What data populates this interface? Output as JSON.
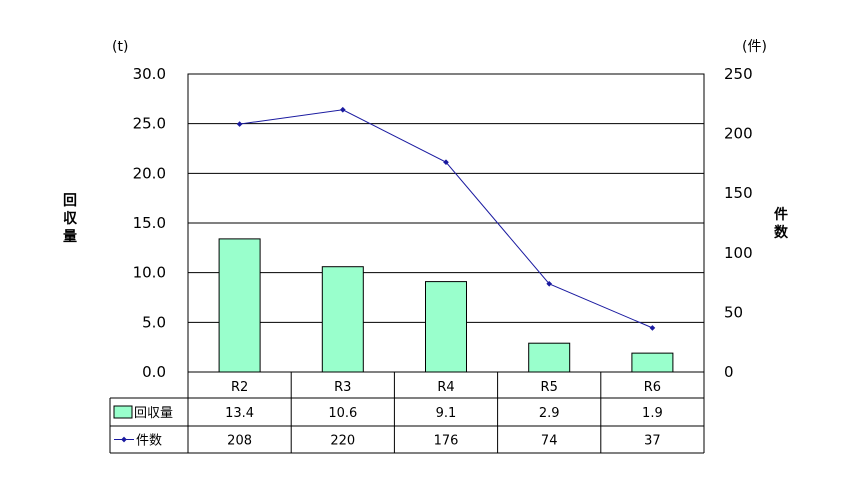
{
  "chart_data": {
    "type": "bar+line",
    "categories": [
      "R2",
      "R3",
      "R4",
      "R5",
      "R6"
    ],
    "series": [
      {
        "name": "回収量",
        "type": "bar",
        "axis": "left",
        "values": [
          13.4,
          10.6,
          9.1,
          2.9,
          1.9
        ],
        "value_labels": [
          "13.4",
          "10.6",
          "9.1",
          "2.9",
          "1.9"
        ]
      },
      {
        "name": "件数",
        "type": "line",
        "axis": "right",
        "values": [
          208,
          220,
          176,
          74,
          37
        ],
        "value_labels": [
          "208",
          "220",
          "176",
          "74",
          "37"
        ]
      }
    ],
    "y_left": {
      "unit": "(t)",
      "label_chars": [
        "回",
        "収",
        "量"
      ],
      "ylim": [
        0,
        30
      ],
      "ticks": [
        "0.0",
        "5.0",
        "10.0",
        "15.0",
        "20.0",
        "25.0",
        "30.0"
      ]
    },
    "y_right": {
      "unit": "(件)",
      "label_chars": [
        "件",
        "数"
      ],
      "ylim": [
        0,
        250
      ],
      "ticks": [
        "0",
        "50",
        "100",
        "150",
        "200",
        "250"
      ]
    },
    "grid": true,
    "legend": "data-table",
    "colors": {
      "bar_fill": "#99ffcc",
      "bar_stroke": "#000000",
      "line": "#1a1aa0",
      "grid": "#000000"
    }
  }
}
